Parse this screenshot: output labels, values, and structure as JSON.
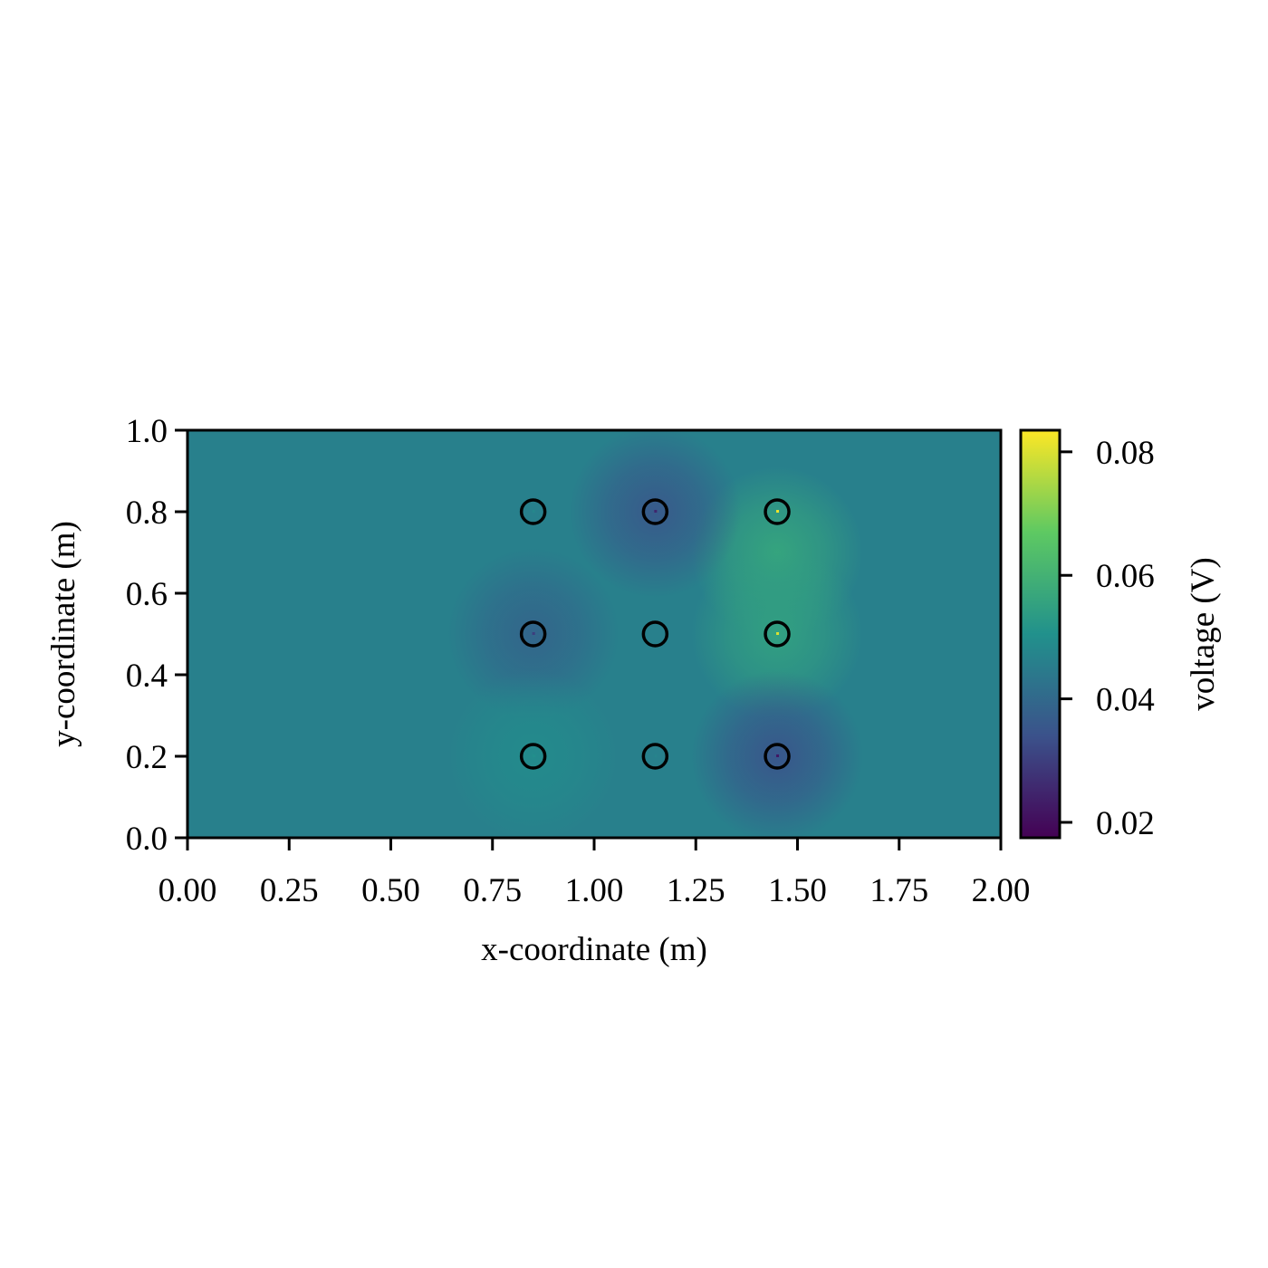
{
  "chart_data": {
    "type": "heatmap",
    "title": "",
    "xlabel": "x-coordinate (m)",
    "ylabel": "y-coordinate (m)",
    "xlim": [
      0.0,
      2.0
    ],
    "ylim": [
      0.0,
      1.0
    ],
    "x_ticks": [
      "0.00",
      "0.25",
      "0.50",
      "0.75",
      "1.00",
      "1.25",
      "1.50",
      "1.75",
      "2.00"
    ],
    "y_ticks": [
      "0.0",
      "0.2",
      "0.4",
      "0.6",
      "0.8",
      "1.0"
    ],
    "colorbar": {
      "label": "voltage (V)",
      "colormap": "viridis",
      "range": [
        0.0175,
        0.0835
      ],
      "ticks": [
        "0.02",
        "0.04",
        "0.06",
        "0.08"
      ]
    },
    "background_voltage": 0.046,
    "sources": [
      {
        "x": 0.85,
        "y": 0.8,
        "voltage": 0.048
      },
      {
        "x": 1.15,
        "y": 0.8,
        "voltage": 0.025
      },
      {
        "x": 1.45,
        "y": 0.8,
        "voltage": 0.082
      },
      {
        "x": 0.85,
        "y": 0.5,
        "voltage": 0.03
      },
      {
        "x": 1.15,
        "y": 0.5,
        "voltage": 0.046
      },
      {
        "x": 1.45,
        "y": 0.5,
        "voltage": 0.08
      },
      {
        "x": 0.85,
        "y": 0.2,
        "voltage": 0.05
      },
      {
        "x": 1.15,
        "y": 0.2,
        "voltage": 0.047
      },
      {
        "x": 1.45,
        "y": 0.2,
        "voltage": 0.022
      }
    ],
    "peak_regions": [
      {
        "x": 1.45,
        "y": 0.7,
        "voltage": 0.056
      },
      {
        "x": 1.45,
        "y": 0.5,
        "voltage": 0.055
      },
      {
        "x": 1.15,
        "y": 0.8,
        "voltage": 0.036
      },
      {
        "x": 0.85,
        "y": 0.5,
        "voltage": 0.039
      },
      {
        "x": 1.45,
        "y": 0.2,
        "voltage": 0.035
      },
      {
        "x": 0.85,
        "y": 0.2,
        "voltage": 0.049
      }
    ],
    "colors": {
      "marker_edge": "#000000",
      "viridis_stops": [
        "#440154",
        "#3b528b",
        "#21918c",
        "#5ec962",
        "#fde725"
      ]
    }
  }
}
